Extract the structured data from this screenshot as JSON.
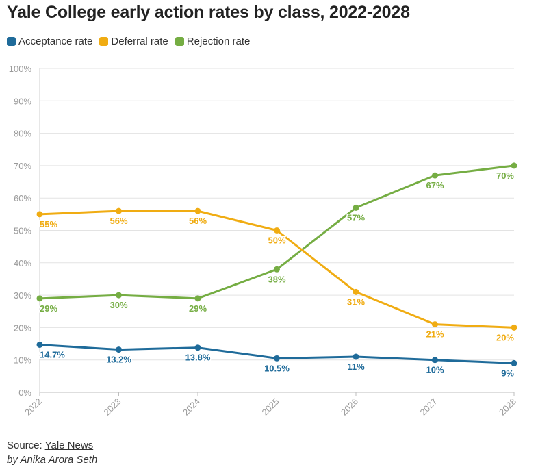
{
  "chart_data": {
    "type": "line",
    "title": "Yale College early action rates by class, 2022-2028",
    "categories": [
      "2022",
      "2023",
      "2024",
      "2025",
      "2026",
      "2027",
      "2028"
    ],
    "ylim": [
      0,
      100
    ],
    "y_ticks": [
      0,
      10,
      20,
      30,
      40,
      50,
      60,
      70,
      80,
      90,
      100
    ],
    "y_tick_labels": [
      "0%",
      "10%",
      "20%",
      "30%",
      "40%",
      "50%",
      "60%",
      "70%",
      "80%",
      "90%",
      "100%"
    ],
    "legend_position": "top-left",
    "grid": true,
    "series": [
      {
        "name": "Acceptance rate",
        "color": "#1f6b9a",
        "values": [
          14.7,
          13.2,
          13.8,
          10.5,
          11,
          10,
          9
        ],
        "labels": [
          "14.7%",
          "13.2%",
          "13.8%",
          "10.5%",
          "11%",
          "10%",
          "9%"
        ]
      },
      {
        "name": "Deferral rate",
        "color": "#f0ac12",
        "values": [
          55,
          56,
          56,
          50,
          31,
          21,
          20
        ],
        "labels": [
          "55%",
          "56%",
          "56%",
          "50%",
          "31%",
          "21%",
          "20%"
        ]
      },
      {
        "name": "Rejection rate",
        "color": "#75ad43",
        "values": [
          29,
          30,
          29,
          38,
          57,
          67,
          70
        ],
        "labels": [
          "29%",
          "30%",
          "29%",
          "38%",
          "57%",
          "67%",
          "70%"
        ]
      }
    ]
  },
  "footer": {
    "source_prefix": "Source: ",
    "source_link": "Yale News",
    "byline": "by Anika Arora Seth"
  }
}
